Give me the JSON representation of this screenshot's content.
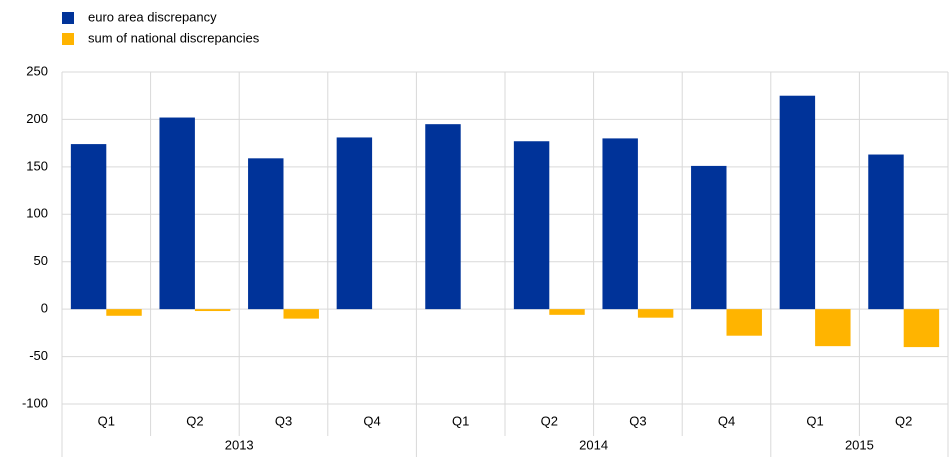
{
  "chart_data": {
    "type": "bar",
    "categories": [
      "Q1",
      "Q2",
      "Q3",
      "Q4",
      "Q1",
      "Q2",
      "Q3",
      "Q4",
      "Q1",
      "Q2"
    ],
    "group_labels": [
      "2013",
      null,
      null,
      null,
      "2014",
      null,
      null,
      null,
      "2015",
      null
    ],
    "series": [
      {
        "name": "euro area discrepancy",
        "color": "#003399",
        "values": [
          174,
          202,
          159,
          181,
          195,
          177,
          180,
          151,
          225,
          163
        ]
      },
      {
        "name": "sum of national discrepancies",
        "color": "#ffb400",
        "values": [
          -7,
          -2,
          -10,
          0,
          0,
          -6,
          -9,
          -28,
          -39,
          -40
        ]
      }
    ],
    "ylim": [
      -100,
      250
    ],
    "yticks": [
      -100,
      -50,
      0,
      50,
      100,
      150,
      200,
      250
    ],
    "grid": true,
    "legend": "top-left"
  }
}
